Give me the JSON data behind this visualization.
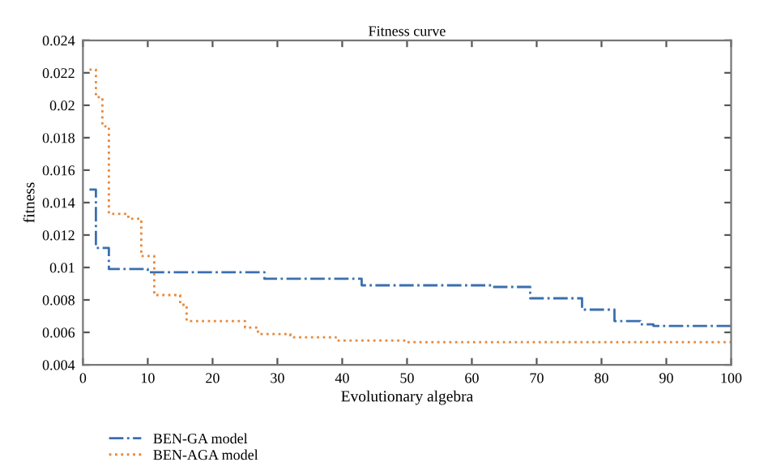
{
  "chart_data": {
    "type": "step",
    "title": "Fitness curve",
    "xlabel": "Evolutionary algebra",
    "ylabel": "fitness",
    "xlim": [
      0,
      100
    ],
    "xticks": [
      0,
      10,
      20,
      30,
      40,
      50,
      60,
      70,
      80,
      90,
      100
    ],
    "ylim": [
      0.004,
      0.024
    ],
    "yticks": [
      0.004,
      0.006,
      0.008,
      0.01,
      0.012,
      0.014,
      0.016,
      0.018,
      0.02,
      0.022,
      0.024
    ],
    "grid": false,
    "legend": "bottom left",
    "marker": "none",
    "series": [
      {
        "name": "BEN-GA model",
        "color": "#3a6fb0",
        "line_style": "dashdot",
        "x": [
          1,
          2,
          4,
          10,
          28,
          43,
          63,
          69,
          77,
          82,
          86,
          88,
          100
        ],
        "values": [
          0.0148,
          0.0112,
          0.0099,
          0.0097,
          0.0093,
          0.0089,
          0.0088,
          0.0081,
          0.0074,
          0.0067,
          0.0065,
          0.0064,
          0.0064
        ]
      },
      {
        "name": "BEN-AGA model",
        "color": "#e8883a",
        "line_style": "dotted",
        "x": [
          1,
          2,
          3,
          4,
          7,
          9,
          11,
          15,
          16,
          25,
          27,
          32,
          39,
          50,
          100
        ],
        "values": [
          0.0222,
          0.0205,
          0.0187,
          0.0133,
          0.013,
          0.0107,
          0.0083,
          0.0077,
          0.0067,
          0.0063,
          0.0059,
          0.0057,
          0.0055,
          0.0054,
          0.0054
        ]
      }
    ]
  }
}
